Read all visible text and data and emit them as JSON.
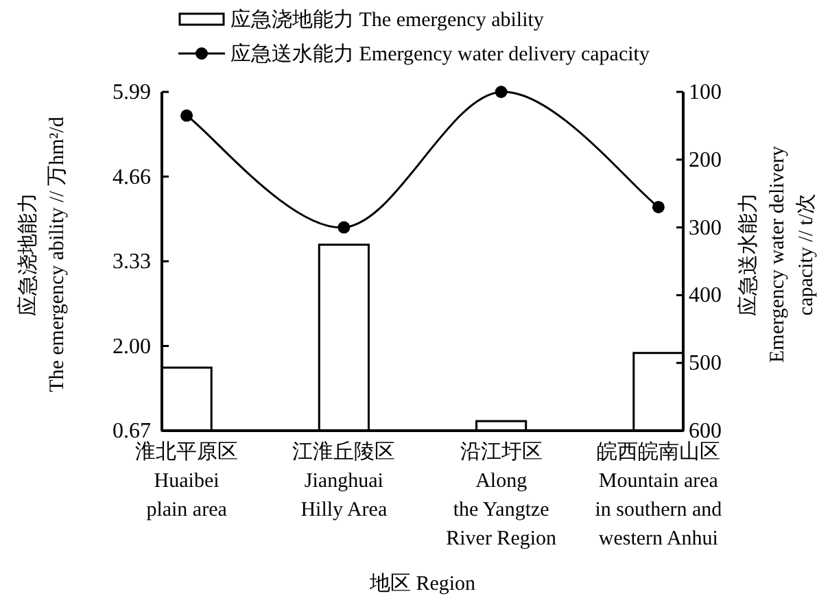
{
  "chart_data": {
    "type": "bar",
    "xlabel": "地区 Region",
    "ylabel": "应急浇地能力\nThe emergency ability // 万hm²/d",
    "y2label": "应急送水能力\nEmergency water delivery\ncapacity // t/次",
    "categories": [
      "淮北平原区\nHuaibei\nplain area",
      "江淮丘陵区\nJianghuai\nHilly Area",
      "沿江圩区\nAlong\nthe Yangtze\nRiver Region",
      "皖西皖南山区\nMountain area\nin southern and\nwestern Anhui"
    ],
    "series": [
      {
        "name": "应急浇地能力 The emergency ability",
        "color": "#ffffff",
        "values": [
          1.66,
          3.59,
          0.82,
          1.89
        ]
      },
      {
        "name": "应急送水能力 Emergency water delivery capacity",
        "type": "line",
        "axis": "y2",
        "color": "#000000",
        "values": [
          135,
          300,
          100,
          270
        ]
      }
    ],
    "ylim": [
      0.67,
      5.99
    ],
    "yticks": [
      0.67,
      {
        "value": 2,
        "label": "2.00"
      },
      3.33,
      4.66,
      5.99
    ],
    "y2lim": [
      600,
      100
    ],
    "y2ticks": [
      100,
      200,
      300,
      400,
      500,
      600
    ],
    "marker": "circle",
    "line_style": "solid",
    "legend": "top",
    "grid": false
  }
}
